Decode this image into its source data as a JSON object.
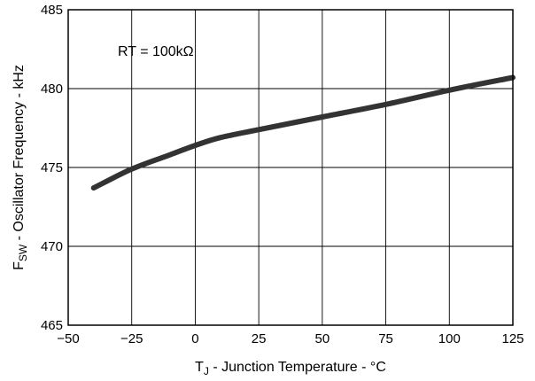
{
  "chart_data": {
    "type": "line",
    "title": "",
    "xlabel": {
      "main": "T",
      "sub": "J",
      "rest": " - Junction Temperature - °C"
    },
    "ylabel": {
      "main": "F",
      "sub": "SW",
      "rest": " - Oscillator Frequency - kHz"
    },
    "xlim": [
      -50,
      125
    ],
    "ylim": [
      465,
      485
    ],
    "x_ticks": [
      -50,
      -25,
      0,
      25,
      50,
      75,
      100,
      125
    ],
    "x_tick_labels": [
      "−50",
      "−25",
      "0",
      "25",
      "50",
      "75",
      "100",
      "125"
    ],
    "y_ticks": [
      465,
      470,
      475,
      480,
      485
    ],
    "y_tick_labels": [
      "465",
      "470",
      "475",
      "480",
      "485"
    ],
    "grid": true,
    "annotation": "RT = 100kΩ",
    "series": [
      {
        "x": [
          -40,
          -25,
          -10,
          0,
          10,
          25,
          50,
          75,
          100,
          125
        ],
        "y": [
          473.7,
          474.9,
          475.8,
          476.4,
          476.9,
          477.4,
          478.2,
          479.0,
          479.9,
          480.7
        ],
        "color": "#333333"
      }
    ]
  }
}
